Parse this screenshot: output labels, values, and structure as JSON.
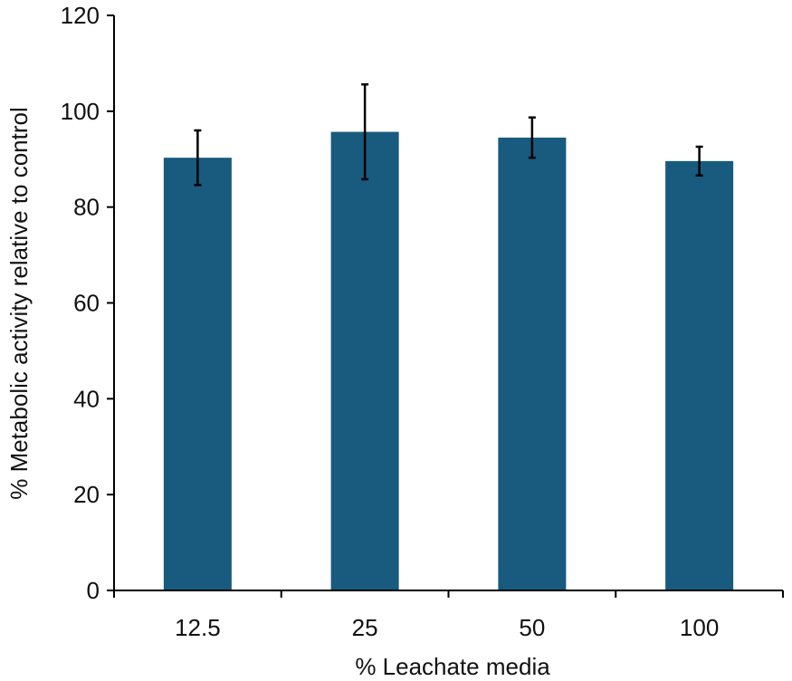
{
  "chart_data": {
    "type": "bar",
    "title": "",
    "xlabel": "% Leachate media",
    "ylabel": "% Metabolic activity relative to control",
    "categories": [
      "12.5",
      "25",
      "50",
      "100"
    ],
    "values": [
      90.3,
      95.7,
      94.5,
      89.6
    ],
    "errors": [
      5.7,
      9.9,
      4.2,
      3.0
    ],
    "ylim": [
      0,
      120
    ],
    "yticks": [
      0,
      20,
      40,
      60,
      80,
      100,
      120
    ],
    "yticks_labels": [
      "0",
      "20",
      "40",
      "60",
      "80",
      "100",
      "120"
    ],
    "grid": false,
    "legend": "none",
    "bar_color": "#185b7e",
    "error_bar_color": "#000000"
  }
}
